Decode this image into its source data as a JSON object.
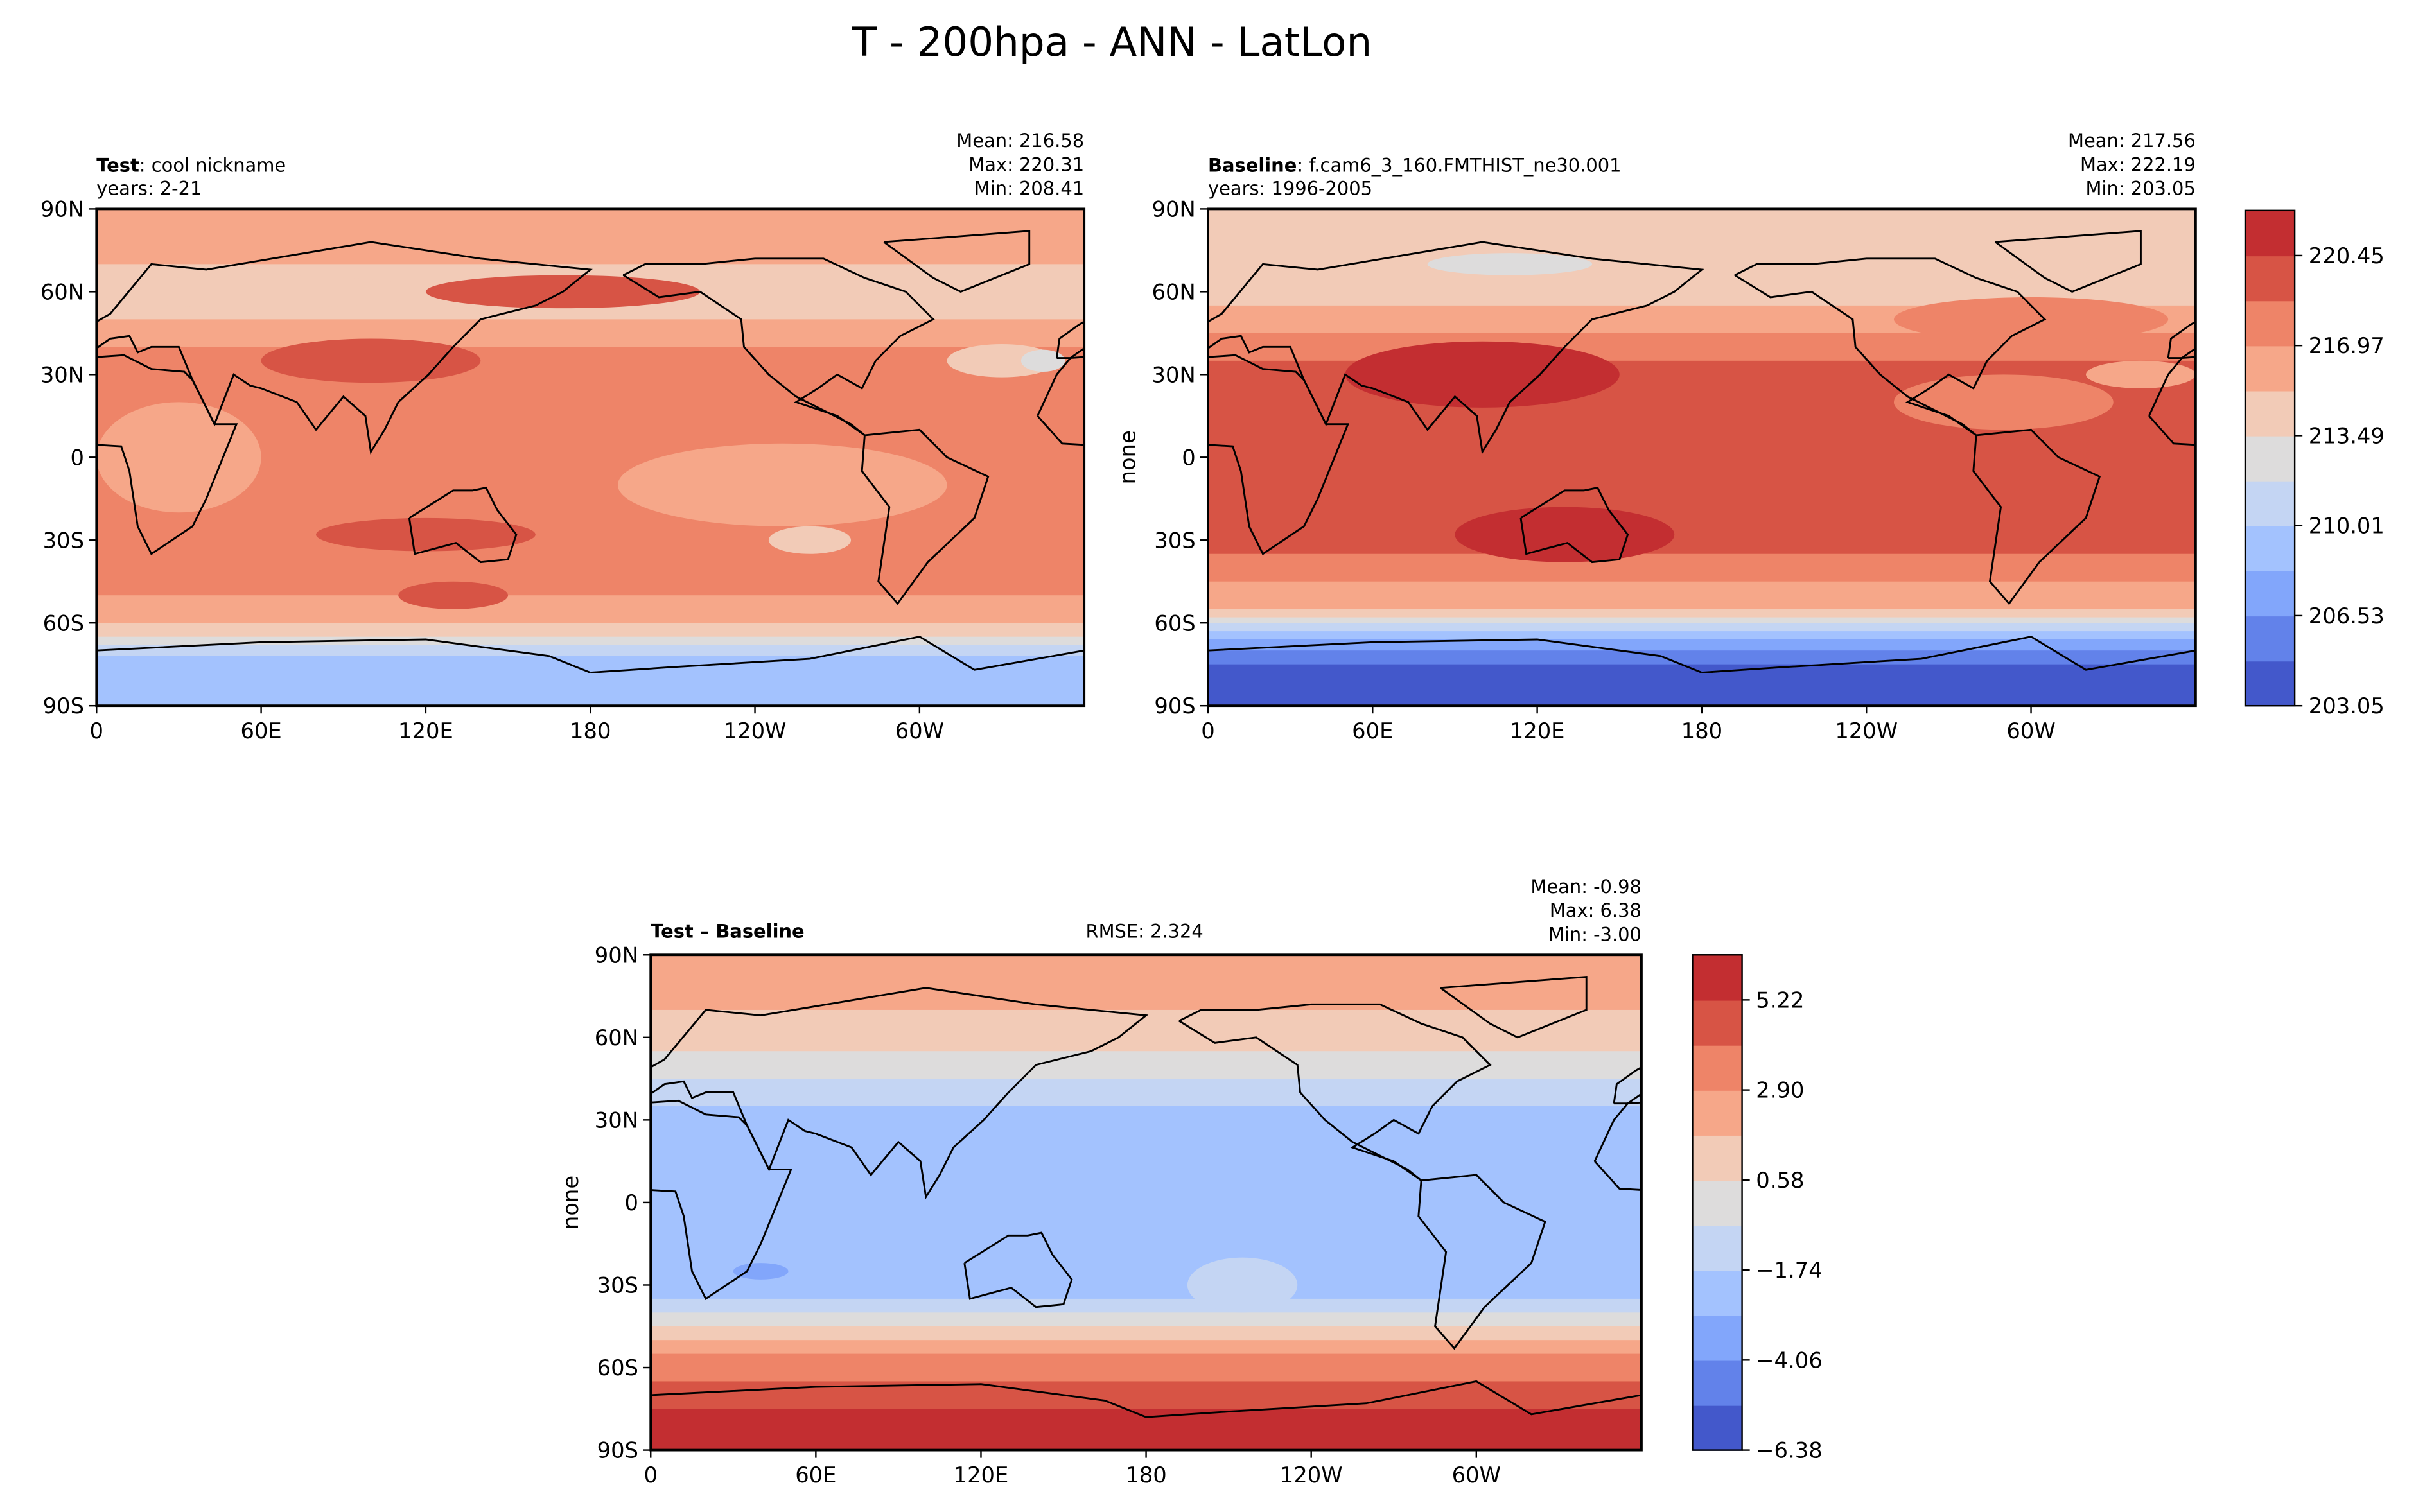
{
  "title": "T - 200hpa - ANN - LatLon",
  "palette": [
    "#4358cb",
    "#6282ea",
    "#82a6fb",
    "#a3c2fe",
    "#c4d5f3",
    "#dddcdc",
    "#f2cbb7",
    "#f6a789",
    "#ee8468",
    "#d75445",
    "#c32e31"
  ],
  "chart_data": [
    {
      "type": "heatmap",
      "name": "test",
      "label_bold": "Test",
      "label_rest": ": cool nickname",
      "years": "years: 2-21",
      "stats": [
        "Mean: 216.58",
        "Max: 220.31",
        "Min: 208.41"
      ],
      "ylabel": "",
      "x_ticks": [
        "0",
        "60E",
        "120E",
        "180",
        "120W",
        "60W"
      ],
      "x_tick_values": [
        0,
        60,
        120,
        180,
        240,
        300
      ],
      "y_ticks": [
        "90N",
        "60N",
        "30N",
        "0",
        "30S",
        "60S",
        "90S"
      ],
      "y_tick_values": [
        90,
        60,
        30,
        0,
        -30,
        -60,
        -90
      ],
      "bands": [
        [
          90,
          70,
          7
        ],
        [
          70,
          50,
          6
        ],
        [
          50,
          40,
          7
        ],
        [
          40,
          -50,
          8
        ],
        [
          -50,
          -60,
          7
        ],
        [
          -60,
          -65,
          6
        ],
        [
          -65,
          -68,
          5
        ],
        [
          -68,
          -72,
          4
        ],
        [
          -72,
          -90,
          3
        ]
      ],
      "blobs": [
        [
          30,
          0,
          30,
          20,
          7
        ],
        [
          250,
          -10,
          60,
          15,
          7
        ],
        [
          60,
          60,
          60,
          6,
          6
        ],
        [
          100,
          35,
          40,
          8,
          9
        ],
        [
          170,
          60,
          50,
          6,
          9
        ],
        [
          120,
          -28,
          40,
          6,
          9
        ],
        [
          130,
          -50,
          20,
          5,
          9
        ],
        [
          330,
          35,
          20,
          6,
          6
        ],
        [
          345,
          35,
          8,
          4,
          5
        ],
        [
          260,
          -30,
          15,
          5,
          6
        ]
      ]
    },
    {
      "type": "heatmap",
      "name": "baseline",
      "label_bold": "Baseline",
      "label_rest": ": f.cam6_3_160.FMTHIST_ne30.001",
      "years": "years: 1996-2005",
      "stats": [
        "Mean: 217.56",
        "Max: 222.19",
        "Min: 203.05"
      ],
      "ylabel": "none",
      "x_ticks": [
        "0",
        "60E",
        "120E",
        "180",
        "120W",
        "60W"
      ],
      "x_tick_values": [
        0,
        60,
        120,
        180,
        240,
        300
      ],
      "y_ticks": [
        "90N",
        "60N",
        "30N",
        "0",
        "30S",
        "60S",
        "90S"
      ],
      "y_tick_values": [
        90,
        60,
        30,
        0,
        -30,
        -60,
        -90
      ],
      "bands": [
        [
          90,
          70,
          6
        ],
        [
          70,
          55,
          6
        ],
        [
          55,
          45,
          7
        ],
        [
          45,
          35,
          8
        ],
        [
          35,
          -35,
          9
        ],
        [
          -35,
          -45,
          8
        ],
        [
          -45,
          -55,
          7
        ],
        [
          -55,
          -58,
          6
        ],
        [
          -58,
          -60,
          5
        ],
        [
          -60,
          -63,
          4
        ],
        [
          -63,
          -66,
          3
        ],
        [
          -66,
          -70,
          2
        ],
        [
          -70,
          -75,
          1
        ],
        [
          -75,
          -90,
          0
        ]
      ],
      "blobs": [
        [
          110,
          70,
          30,
          4,
          5
        ],
        [
          300,
          50,
          50,
          8,
          8
        ],
        [
          340,
          30,
          20,
          5,
          7
        ],
        [
          100,
          30,
          50,
          12,
          10
        ],
        [
          130,
          -28,
          40,
          10,
          10
        ],
        [
          290,
          20,
          40,
          10,
          8
        ]
      ],
      "colorbar": {
        "min": 203.05,
        "max": 222.19,
        "step": 1.74,
        "ticks": [
          "203.05",
          "206.53",
          "210.01",
          "213.49",
          "216.97",
          "220.45"
        ]
      }
    },
    {
      "type": "heatmap",
      "name": "difference",
      "label_bold": "Test – Baseline",
      "rmse": "RMSE: 2.324",
      "stats": [
        "Mean: -0.98",
        "Max:  6.38",
        "Min: -3.00"
      ],
      "ylabel": "none",
      "x_ticks": [
        "0",
        "60E",
        "120E",
        "180",
        "120W",
        "60W"
      ],
      "x_tick_values": [
        0,
        60,
        120,
        180,
        240,
        300
      ],
      "y_ticks": [
        "90N",
        "60N",
        "30N",
        "0",
        "30S",
        "60S",
        "90S"
      ],
      "y_tick_values": [
        90,
        60,
        30,
        0,
        -30,
        -60,
        -90
      ],
      "bands": [
        [
          90,
          70,
          7
        ],
        [
          70,
          55,
          6
        ],
        [
          55,
          45,
          5
        ],
        [
          45,
          35,
          4
        ],
        [
          35,
          -35,
          3
        ],
        [
          -35,
          -40,
          4
        ],
        [
          -40,
          -45,
          5
        ],
        [
          -45,
          -50,
          6
        ],
        [
          -50,
          -55,
          7
        ],
        [
          -55,
          -65,
          8
        ],
        [
          -65,
          -75,
          9
        ],
        [
          -75,
          -90,
          10
        ]
      ],
      "blobs": [
        [
          40,
          -25,
          10,
          3,
          2
        ],
        [
          215,
          -30,
          20,
          10,
          4
        ]
      ],
      "colorbar": {
        "min": -6.38,
        "max": 6.38,
        "step": 1.16,
        "ticks": [
          "−6.38",
          "−4.06",
          "−1.74",
          "0.58",
          "2.90",
          "5.22"
        ]
      }
    }
  ]
}
